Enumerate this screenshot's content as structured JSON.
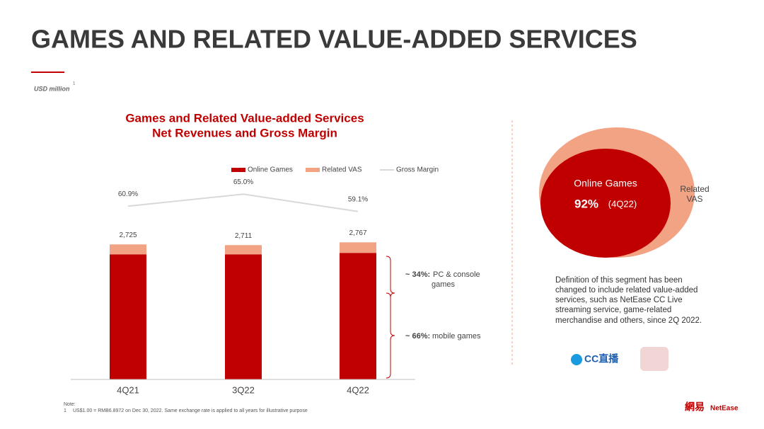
{
  "header": {
    "title": "GAMES AND RELATED VALUE-ADDED SERVICES",
    "unit": "USD million",
    "unit_note": "1"
  },
  "chart_data": {
    "type": "bar",
    "stacked": true,
    "title": [
      "Games and Related Value-added Services",
      "Net Revenues and Gross Margin"
    ],
    "categories": [
      "4Q21",
      "3Q22",
      "4Q22"
    ],
    "series": [
      {
        "name": "Online Games",
        "color": "#c00000",
        "values": [
          2525,
          2525,
          2554
        ]
      },
      {
        "name": "Related VAS",
        "color": "#f2a384",
        "values": [
          200,
          186,
          213
        ]
      },
      {
        "name": "Gross Margin",
        "color": "#d9d9d9",
        "type": "line",
        "axis": "y2",
        "values": [
          60.9,
          65.0,
          59.1
        ],
        "value_labels": [
          "60.9%",
          "65.0%",
          "59.1%"
        ]
      }
    ],
    "totals": {
      "values": [
        2725,
        2711,
        2767
      ],
      "value_labels": [
        "2,725",
        "2,711",
        "2,767"
      ]
    },
    "ylim": [
      0,
      3000
    ],
    "y2lim": [
      40,
      80
    ],
    "annotations": [
      {
        "bold": "~ 34%:",
        "text": [
          "PC & console",
          "games"
        ]
      },
      {
        "bold": "~ 66%:",
        "text": [
          "mobile games"
        ]
      }
    ]
  },
  "side": {
    "inner_label": "Online Games",
    "share": "92%",
    "period": "(4Q22)",
    "outer_label": [
      "Related",
      "VAS"
    ],
    "definition": [
      "Definition of this segment has been",
      "changed to include related value-added",
      "services, such as NetEase CC Live",
      "streaming service, game-related",
      "merchandise and others, since 2Q 2022."
    ],
    "logo": "CC直播"
  },
  "note": {
    "title": "Note:",
    "number": "1",
    "text": "US$1.00 = RMB6.8972 on Dec 30, 2022. Same exchange rate is applied to all years for illustrative purpose"
  },
  "brand": {
    "chinese": "網易",
    "latin": "NetEase"
  }
}
